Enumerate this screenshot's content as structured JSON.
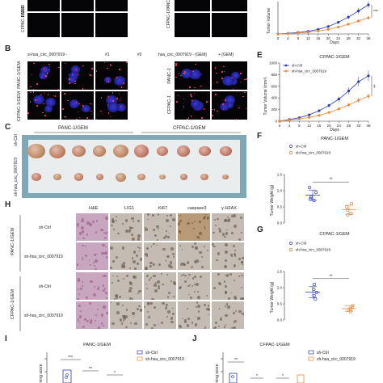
{
  "panel_letters": {
    "b": "B",
    "c": "C",
    "e": "E",
    "f": "F",
    "g": "G",
    "h": "H",
    "i": "I",
    "j": "J"
  },
  "panel_a_fragment": {
    "row_label_left": "PANC-",
    "row_label_left2": "CFPAC-1/GEM",
    "row_label_right": "PANC",
    "row_label_right2": "CFPAC-1"
  },
  "panel_b": {
    "col_labels_left": [
      "si-hsa_circ_0007919 -",
      "#1",
      "#2"
    ],
    "col_labels_right": [
      "hsa_circ_0007919 - (GEM)",
      "+ (GEM)"
    ],
    "row_labels_left": [
      "PANC-1/GEM",
      "CFPAC-1/GEM"
    ],
    "row_labels_right": [
      "PANC-1",
      "CFPAC-1"
    ]
  },
  "panel_c": {
    "group_labels": [
      "PANC-1/GEM",
      "CFPAC-1/GEM"
    ],
    "row_labels": [
      "sh-Ctrl",
      "sh-hsa_circ_0007919"
    ]
  },
  "panel_h": {
    "col_labels": [
      "H&E",
      "LIG1",
      "Ki67",
      "caspase3",
      "γ-H2AX"
    ],
    "groups": [
      "PANC-1/GEM",
      "CFPAC-1/GEM"
    ],
    "row_labels": [
      "sh-Ctrl",
      "sh-hsa_circ_0007919",
      "sh-Ctrl",
      "sh-hsa_circ_0007919"
    ]
  },
  "panel_i": {
    "title": "PANC-1/GEM",
    "ylabel": "ning score",
    "legend": [
      "sh-Ctrl",
      "sh-hsa_circ_0007919"
    ],
    "sig": [
      "***",
      "**",
      "*"
    ]
  },
  "panel_j": {
    "title": "CFPAC-1/GEM",
    "ylabel": "ning score",
    "legend": [
      "sh-Ctrl",
      "sh-hsa_circ_0007919"
    ],
    "sig": [
      "**",
      "*",
      "*"
    ]
  },
  "colors": {
    "ctrl": "#2b3bb3",
    "sh": "#e8883a"
  },
  "chart_data": [
    {
      "type": "line",
      "panel": "D (partial)",
      "title": "",
      "xlabel": "Days",
      "ylabel": "Tumor Volume",
      "x": [
        0,
        4,
        8,
        12,
        16,
        20,
        24,
        28,
        32,
        36
      ],
      "x_ticks": [
        0,
        4,
        8,
        12,
        16,
        20,
        24,
        28,
        32,
        36
      ],
      "ylim": [
        0,
        1000
      ],
      "series": [
        {
          "values": [
            0,
            20,
            45,
            80,
            140,
            230,
            360,
            520,
            710,
            900
          ]
        },
        {
          "values": [
            0,
            15,
            30,
            55,
            90,
            140,
            210,
            300,
            400,
            500
          ]
        }
      ],
      "significance": "***"
    },
    {
      "type": "line",
      "panel": "E",
      "title": "CFPAC-1/GEM",
      "xlabel": "Days",
      "ylabel": "Tumor Volume (mm³)",
      "x": [
        0,
        4,
        8,
        12,
        16,
        20,
        24,
        28,
        32,
        36
      ],
      "x_ticks": [
        0,
        4,
        8,
        12,
        16,
        20,
        24,
        28,
        32,
        36
      ],
      "y_ticks": [
        0,
        200,
        400,
        600,
        800,
        1000
      ],
      "ylim": [
        0,
        1000
      ],
      "series": [
        {
          "name": "sh-Ctrl",
          "values": [
            0,
            30,
            60,
            110,
            180,
            270,
            380,
            520,
            680,
            780
          ]
        },
        {
          "name": "sh-hsa_circ_0007919",
          "values": [
            0,
            20,
            40,
            65,
            100,
            150,
            210,
            280,
            360,
            430
          ]
        }
      ],
      "significance": "‡"
    },
    {
      "type": "scatter",
      "panel": "F",
      "title": "PANC-1/GEM",
      "ylabel": "Tumor Weight (g)",
      "y_ticks": [
        0.0,
        0.5,
        1.0,
        1.5
      ],
      "ylim": [
        0,
        1.5
      ],
      "categories": [
        "sh-Ctrl",
        "sh-hsa_circ_0007919"
      ],
      "series": [
        {
          "name": "sh-Ctrl",
          "values": [
            0.7,
            0.95,
            0.8,
            1.1,
            0.75
          ],
          "mean": 0.86,
          "sd": 0.16
        },
        {
          "name": "sh-hsa_circ_0007919",
          "values": [
            0.3,
            0.5,
            0.4,
            0.6,
            0.25
          ],
          "mean": 0.41,
          "sd": 0.14
        }
      ],
      "significance": "**"
    },
    {
      "type": "scatter",
      "panel": "G",
      "title": "CFPAC-1/GEM",
      "ylabel": "Tumor Weight (g)",
      "y_ticks": [
        0.0,
        0.5,
        1.0,
        1.5
      ],
      "ylim": [
        0,
        1.5
      ],
      "categories": [
        "sh-Ctrl",
        "sh-hsa_circ_0007919"
      ],
      "series": [
        {
          "name": "sh-Ctrl",
          "values": [
            0.75,
            0.95,
            0.85,
            1.1,
            0.65
          ],
          "mean": 0.86,
          "sd": 0.17
        },
        {
          "name": "sh-hsa_circ_0007919",
          "values": [
            0.3,
            0.45,
            0.35,
            0.25,
            0.4
          ],
          "mean": 0.35,
          "sd": 0.08
        }
      ],
      "significance": "**"
    }
  ]
}
